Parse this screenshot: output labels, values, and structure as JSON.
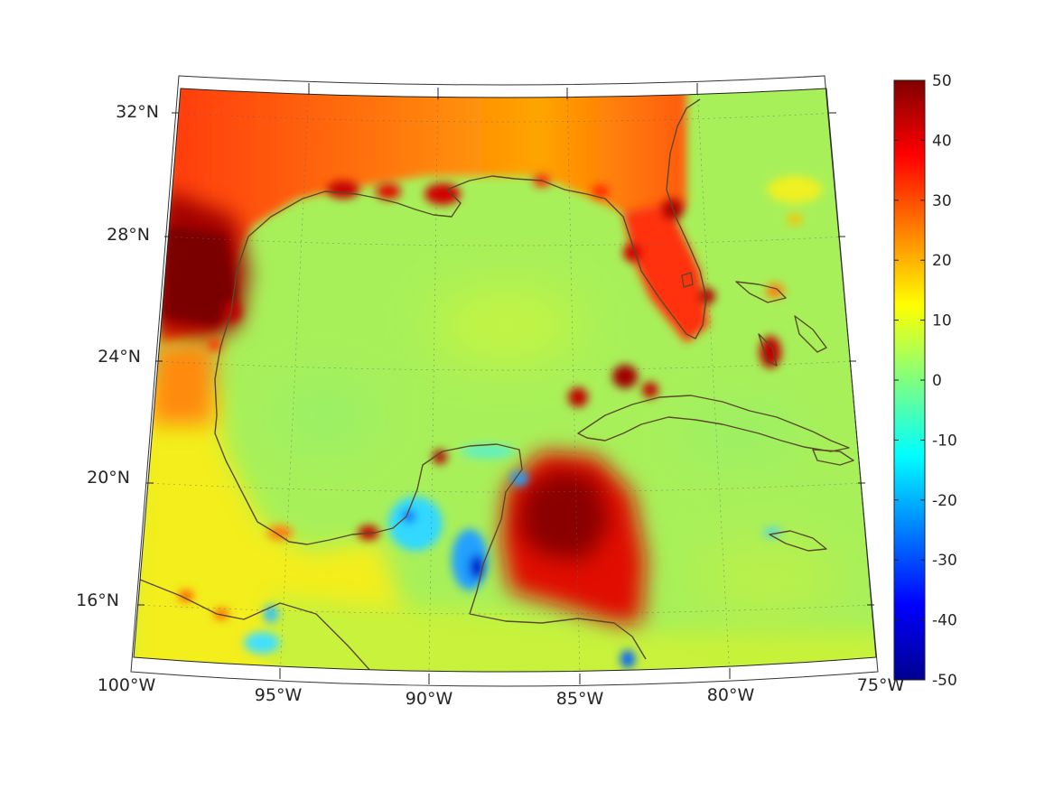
{
  "map": {
    "projection": "lambert-conic",
    "lon_range": [
      -100,
      -75
    ],
    "lat_range": [
      14,
      33
    ],
    "grid": true,
    "lon_ticks": [
      {
        "value": -100,
        "label": "100°W"
      },
      {
        "value": -95,
        "label": "95°W"
      },
      {
        "value": -90,
        "label": "90°W"
      },
      {
        "value": -85,
        "label": "85°W"
      },
      {
        "value": -80,
        "label": "80°W"
      },
      {
        "value": -75,
        "label": "75°W"
      }
    ],
    "lat_ticks": [
      {
        "value": 32,
        "label": "32°N"
      },
      {
        "value": 28,
        "label": "28°N"
      },
      {
        "value": 24,
        "label": "24°N"
      },
      {
        "value": 20,
        "label": "20°N"
      },
      {
        "value": 16,
        "label": "16°N"
      }
    ],
    "colormap": "jet",
    "coastline_color": "#5a4a28"
  },
  "colorbar": {
    "min": -50,
    "max": 50,
    "ticks": [
      "50",
      "40",
      "30",
      "20",
      "10",
      "0",
      "-10",
      "-20",
      "-30",
      "-40",
      "-50"
    ]
  },
  "field_features": [
    {
      "region": "Texas / NW Gulf coast",
      "approx_value": 50
    },
    {
      "region": "Louisiana-Florida panhandle coast",
      "approx_value": 30
    },
    {
      "region": "Florida peninsula west coast",
      "approx_value": 30
    },
    {
      "region": "Gulf of Mexico interior",
      "approx_value": 3
    },
    {
      "region": "Western Caribbean off Honduras",
      "approx_value": 45
    },
    {
      "region": "Bay of Campeche / Tabasco",
      "approx_value": -20
    },
    {
      "region": "Belize coast",
      "approx_value": -35
    },
    {
      "region": "Atlantic / Bahamas region",
      "approx_value": 2
    }
  ]
}
